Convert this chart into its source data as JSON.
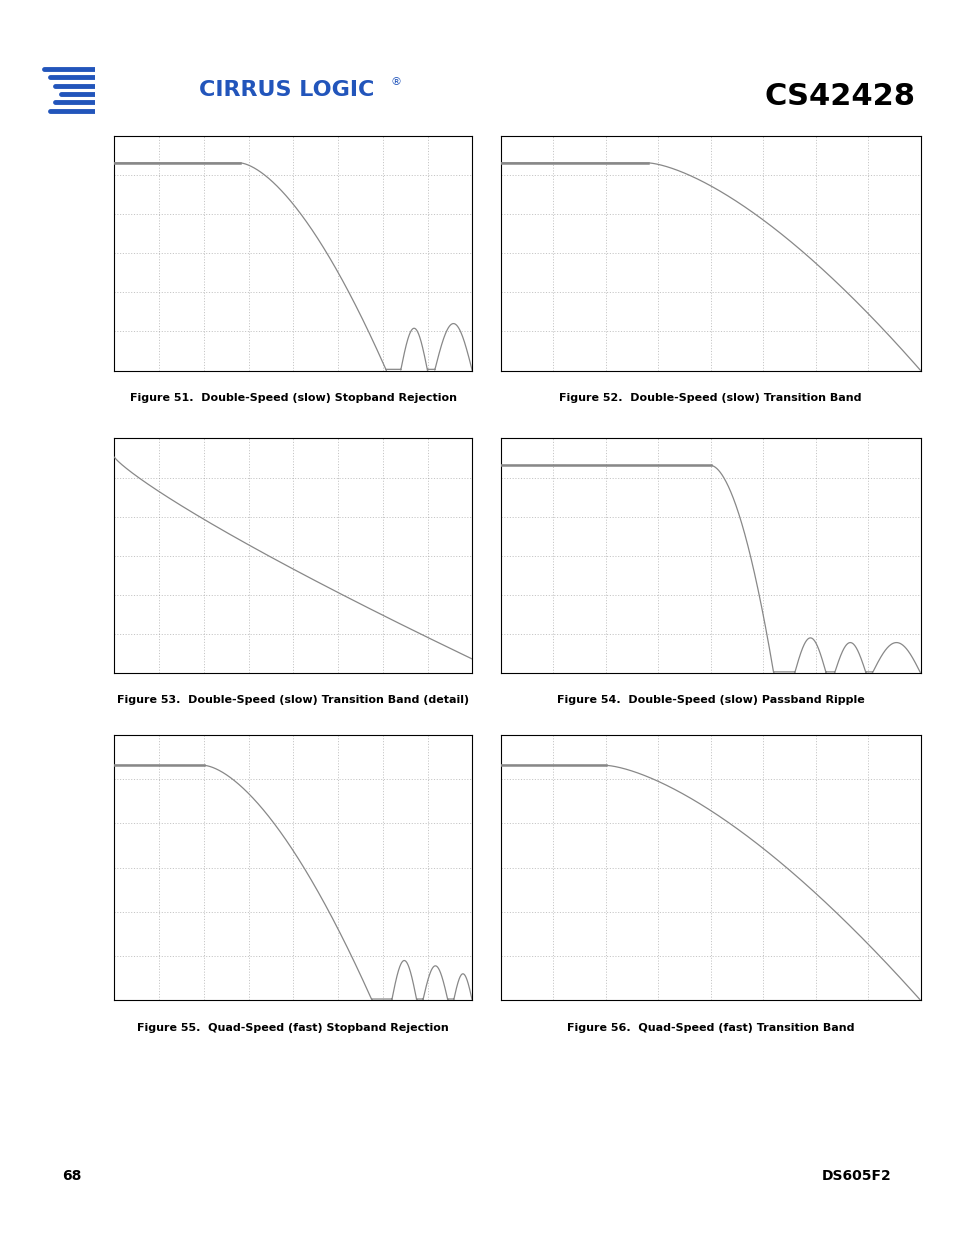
{
  "page_title": "CS42428",
  "company": "CIRRUS LOGIC",
  "page_number": "68",
  "doc_number": "DS605F2",
  "header_bar_color": "#5a5a5a",
  "curve_color": "#888888",
  "grid_color": "#999999",
  "border_color": "#000000",
  "background": "#ffffff",
  "label_fontsize": 8.0,
  "label_fontweight": "bold",
  "labels": [
    "Figure 51.  Double-Speed (slow) Stopband Rejection",
    "Figure 52.  Double-Speed (slow) Transition Band",
    "Figure 53.  Double-Speed (slow) Transition Band (detail)",
    "Figure 54.  Double-Speed (slow) Passband Ripple",
    "Figure 55.  Quad-Speed (fast) Stopband Rejection",
    "Figure 56.  Quad-Speed (fast) Transition Band"
  ],
  "curve_types": [
    "stopband_rejection_slow",
    "transition_band_slow",
    "transition_detail_slow",
    "passband_ripple_slow",
    "stopband_rejection_fast",
    "transition_band_fast"
  ]
}
